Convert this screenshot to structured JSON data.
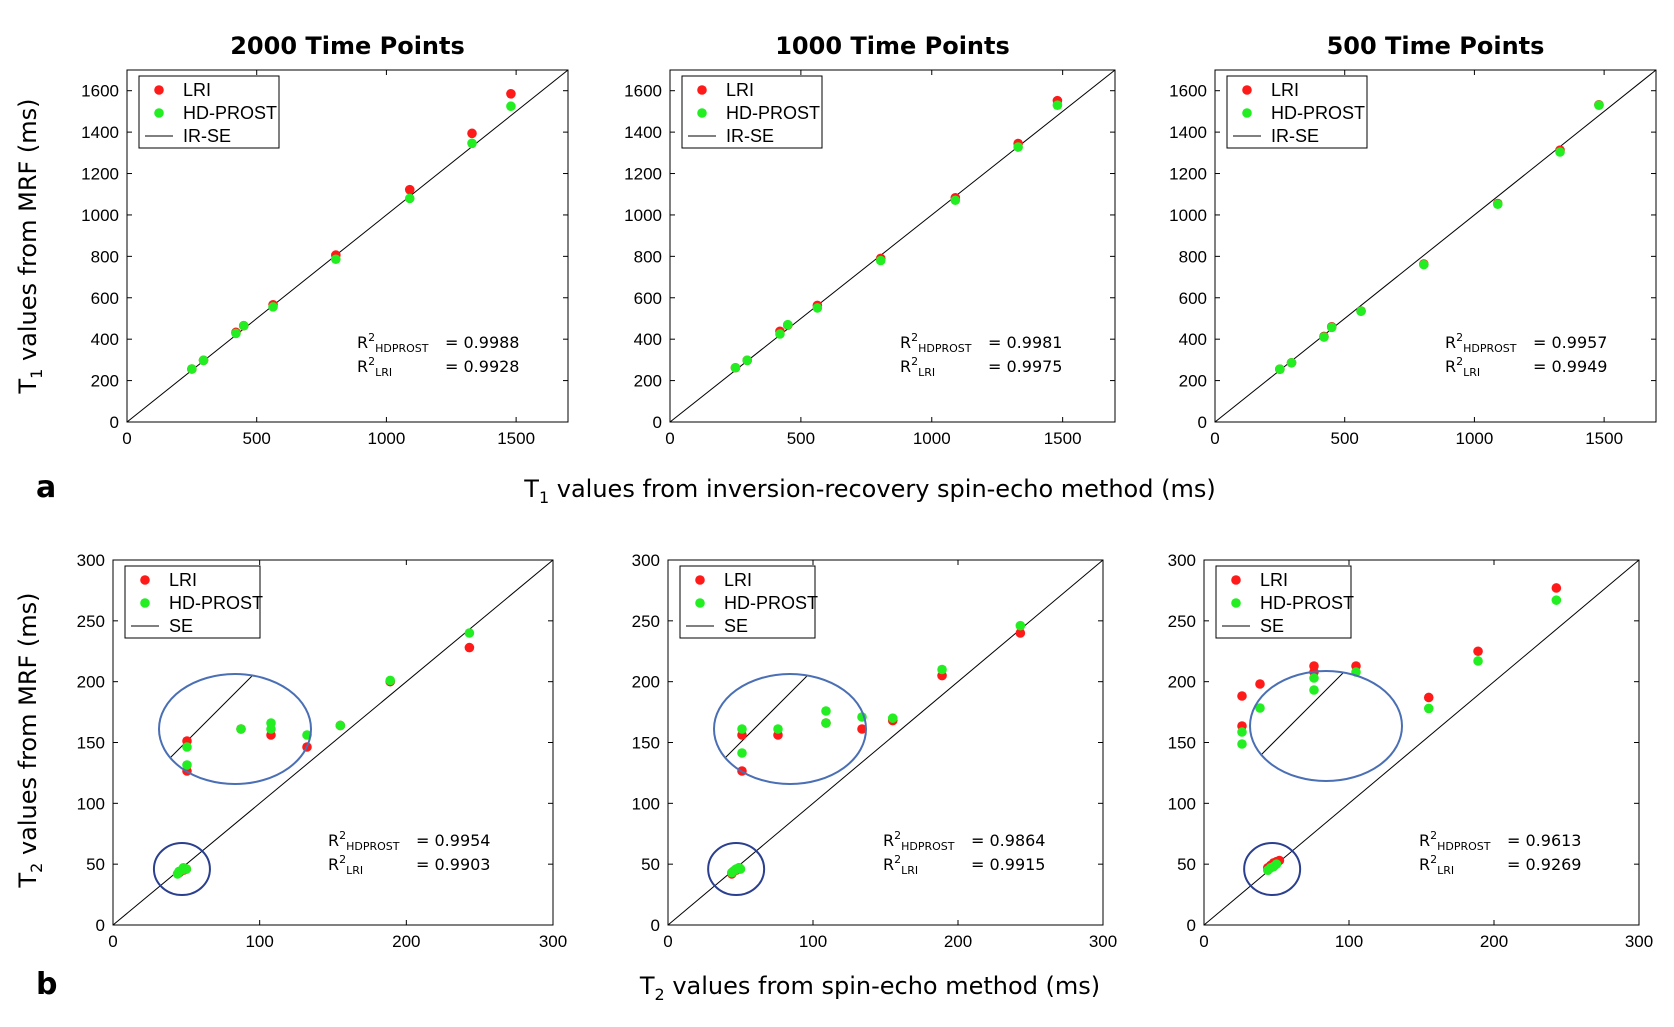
{
  "figure": {
    "panel_letters": [
      "a",
      "b"
    ],
    "row_xlabels": [
      {
        "main": "T",
        "sub": "1",
        "rest": " values from inversion-recovery spin-echo method (ms)"
      },
      {
        "main": "T",
        "sub": "2",
        "rest": " values from spin-echo method (ms)"
      }
    ],
    "row_ylabels": [
      {
        "main": "T",
        "sub": "1",
        "rest": " values from MRF (ms)"
      },
      {
        "main": "T",
        "sub": "2",
        "rest": " values from MRF (ms)"
      }
    ]
  },
  "colors": {
    "lri": "#ff1a1a",
    "hdprost": "#22ee22",
    "identity": "#000000",
    "inset_ring": "#4a6fb5",
    "small_ring": "#2a3f8f"
  },
  "chart_data": [
    {
      "type": "scatter",
      "row": 0,
      "col": 0,
      "title": "2000 Time Points",
      "xlim": [
        0,
        1700
      ],
      "ylim": [
        0,
        1700
      ],
      "xticks": [
        0,
        500,
        1000,
        1500
      ],
      "yticks": [
        0,
        200,
        400,
        600,
        800,
        1000,
        1200,
        1400,
        1600
      ],
      "legend": [
        "LRI",
        "HD-PROST",
        "IR-SE"
      ],
      "legend_position": "top-left",
      "r2": [
        {
          "label": "HDPROST",
          "value": "= 0.9988"
        },
        {
          "label": "LRI",
          "value": "= 0.9928"
        }
      ],
      "series": [
        {
          "name": "LRI",
          "x": [
            250,
            295,
            420,
            450,
            563,
            805,
            1090,
            1330,
            1480
          ],
          "y": [
            256,
            298,
            433,
            465,
            566,
            806,
            1122,
            1394,
            1585
          ]
        },
        {
          "name": "HD-PROST",
          "x": [
            250,
            295,
            420,
            450,
            563,
            805,
            1090,
            1330,
            1480
          ],
          "y": [
            256,
            298,
            428,
            465,
            556,
            786,
            1080,
            1346,
            1525
          ]
        },
        {
          "name": "IR-SE",
          "x": [
            0,
            1700
          ],
          "y": [
            0,
            1700
          ]
        }
      ]
    },
    {
      "type": "scatter",
      "row": 0,
      "col": 1,
      "title": "1000 Time Points",
      "xlim": [
        0,
        1700
      ],
      "ylim": [
        0,
        1700
      ],
      "xticks": [
        0,
        500,
        1000,
        1500
      ],
      "yticks": [
        0,
        200,
        400,
        600,
        800,
        1000,
        1200,
        1400,
        1600
      ],
      "legend": [
        "LRI",
        "HD-PROST",
        "IR-SE"
      ],
      "legend_position": "top-left",
      "r2": [
        {
          "label": "HDPROST",
          "value": "= 0.9981"
        },
        {
          "label": "LRI",
          "value": "= 0.9975"
        }
      ],
      "series": [
        {
          "name": "LRI",
          "x": [
            250,
            295,
            420,
            450,
            563,
            805,
            1090,
            1330,
            1480
          ],
          "y": [
            262,
            298,
            438,
            468,
            563,
            790,
            1083,
            1345,
            1552
          ]
        },
        {
          "name": "HD-PROST",
          "x": [
            250,
            295,
            420,
            450,
            563,
            805,
            1090,
            1330,
            1480
          ],
          "y": [
            262,
            298,
            425,
            470,
            551,
            780,
            1071,
            1328,
            1530
          ]
        },
        {
          "name": "IR-SE",
          "x": [
            0,
            1700
          ],
          "y": [
            0,
            1700
          ]
        }
      ]
    },
    {
      "type": "scatter",
      "row": 0,
      "col": 2,
      "title": "500 Time Points",
      "xlim": [
        0,
        1700
      ],
      "ylim": [
        0,
        1700
      ],
      "xticks": [
        0,
        500,
        1000,
        1500
      ],
      "yticks": [
        0,
        200,
        400,
        600,
        800,
        1000,
        1200,
        1400,
        1600
      ],
      "legend": [
        "LRI",
        "HD-PROST",
        "IR-SE"
      ],
      "legend_position": "top-left",
      "r2": [
        {
          "label": "HDPROST",
          "value": "= 0.9957"
        },
        {
          "label": "LRI",
          "value": "= 0.9949"
        }
      ],
      "series": [
        {
          "name": "LRI",
          "x": [
            250,
            295,
            420,
            450,
            563,
            805,
            1090,
            1330,
            1480
          ],
          "y": [
            255,
            286,
            413,
            460,
            536,
            763,
            1055,
            1313,
            1532
          ]
        },
        {
          "name": "HD-PROST",
          "x": [
            250,
            295,
            420,
            450,
            563,
            805,
            1090,
            1330,
            1480
          ],
          "y": [
            255,
            286,
            410,
            457,
            535,
            760,
            1052,
            1304,
            1530
          ]
        },
        {
          "name": "IR-SE",
          "x": [
            0,
            1700
          ],
          "y": [
            0,
            1700
          ]
        }
      ]
    },
    {
      "type": "scatter",
      "row": 1,
      "col": 0,
      "xlim": [
        0,
        300
      ],
      "ylim": [
        0,
        300
      ],
      "xticks": [
        0,
        100,
        200,
        300
      ],
      "yticks": [
        0,
        50,
        100,
        150,
        200,
        250,
        300
      ],
      "legend": [
        "LRI",
        "HD-PROST",
        "SE"
      ],
      "legend_position": "top-left",
      "r2": [
        {
          "label": "HDPROST",
          "value": "= 0.9954"
        },
        {
          "label": "LRI",
          "value": "= 0.9903"
        }
      ],
      "series": [
        {
          "name": "LRI",
          "x": [
            45,
            46,
            48,
            50,
            155,
            189,
            243
          ],
          "y": [
            43,
            44,
            45,
            46,
            164,
            200,
            228
          ]
        },
        {
          "name": "HD-PROST",
          "x": [
            44,
            45,
            47,
            48,
            50,
            155,
            189,
            243
          ],
          "y": [
            42,
            44,
            45,
            47,
            46,
            164,
            201,
            240
          ]
        },
        {
          "name": "SE",
          "x": [
            0,
            300
          ],
          "y": [
            0,
            300
          ]
        }
      ],
      "inset": {
        "lri_points": [
          [
            46,
            46
          ],
          [
            46,
            41
          ],
          [
            55,
            48
          ],
          [
            60,
            47
          ],
          [
            66,
            45
          ]
        ],
        "hdprost_points": [
          [
            46,
            45
          ],
          [
            46,
            42
          ],
          [
            55,
            48
          ],
          [
            60,
            49
          ],
          [
            60,
            48
          ],
          [
            66,
            47
          ]
        ]
      }
    },
    {
      "type": "scatter",
      "row": 1,
      "col": 1,
      "xlim": [
        0,
        300
      ],
      "ylim": [
        0,
        300
      ],
      "xticks": [
        0,
        100,
        200,
        300
      ],
      "yticks": [
        0,
        50,
        100,
        150,
        200,
        250,
        300
      ],
      "legend": [
        "LRI",
        "HD-PROST",
        "SE"
      ],
      "legend_position": "top-left",
      "r2": [
        {
          "label": "HDPROST",
          "value": "= 0.9864"
        },
        {
          "label": "LRI",
          "value": "= 0.9915"
        }
      ],
      "series": [
        {
          "name": "LRI",
          "x": [
            44,
            45,
            47,
            49,
            155,
            189,
            243
          ],
          "y": [
            42,
            44,
            45,
            47,
            168,
            205,
            240
          ]
        },
        {
          "name": "HD-PROST",
          "x": [
            44,
            46,
            47,
            49,
            50,
            155,
            189,
            243
          ],
          "y": [
            43,
            45,
            46,
            47,
            46,
            170,
            210,
            246
          ]
        },
        {
          "name": "SE",
          "x": [
            0,
            300
          ],
          "y": [
            0,
            300
          ]
        }
      ],
      "inset": {
        "lri_points": [
          [
            46,
            47
          ],
          [
            46,
            41
          ],
          [
            52,
            47
          ],
          [
            60,
            49
          ],
          [
            66,
            48
          ]
        ],
        "hdprost_points": [
          [
            46,
            48
          ],
          [
            46,
            44
          ],
          [
            52,
            48
          ],
          [
            60,
            51
          ],
          [
            60,
            49
          ],
          [
            66,
            50
          ]
        ]
      }
    },
    {
      "type": "scatter",
      "row": 1,
      "col": 2,
      "xlim": [
        0,
        300
      ],
      "ylim": [
        0,
        300
      ],
      "xticks": [
        0,
        100,
        200,
        300
      ],
      "yticks": [
        0,
        50,
        100,
        150,
        200,
        250,
        300
      ],
      "legend": [
        "LRI",
        "HD-PROST",
        "SE"
      ],
      "legend_position": "top-left",
      "r2": [
        {
          "label": "HDPROST",
          "value": "= 0.9613"
        },
        {
          "label": "LRI",
          "value": "= 0.9269"
        }
      ],
      "series": [
        {
          "name": "LRI",
          "x": [
            44,
            46,
            48,
            50,
            52,
            155,
            189,
            243
          ],
          "y": [
            47,
            49,
            51,
            52,
            53,
            187,
            225,
            277
          ]
        },
        {
          "name": "HD-PROST",
          "x": [
            44,
            46,
            48,
            50,
            155,
            189,
            243
          ],
          "y": [
            45,
            47,
            48,
            50,
            178,
            217,
            267
          ]
        },
        {
          "name": "SE",
          "x": [
            0,
            300
          ],
          "y": [
            0,
            300
          ]
        }
      ],
      "inset": {
        "lri_points": [
          [
            40,
            53
          ],
          [
            40,
            48
          ],
          [
            43,
            55
          ],
          [
            52,
            58
          ],
          [
            52,
            57
          ],
          [
            59,
            58
          ]
        ],
        "hdprost_points": [
          [
            40,
            47
          ],
          [
            40,
            45
          ],
          [
            43,
            51
          ],
          [
            52,
            56
          ],
          [
            52,
            54
          ],
          [
            59,
            57
          ]
        ]
      }
    }
  ]
}
